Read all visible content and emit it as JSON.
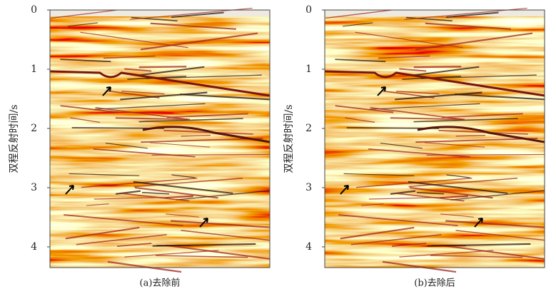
{
  "panels": [
    {
      "caption": "(a)去除前",
      "y_label": "双程反射时间/s",
      "ylim": [
        0,
        4.35
      ],
      "yticks": [
        0,
        1,
        2,
        3,
        4
      ]
    },
    {
      "caption": "(b)去除后",
      "y_label": "双程反射时间/s",
      "ylim": [
        0,
        4.35
      ],
      "yticks": [
        0,
        1,
        2,
        3,
        4
      ]
    }
  ]
}
